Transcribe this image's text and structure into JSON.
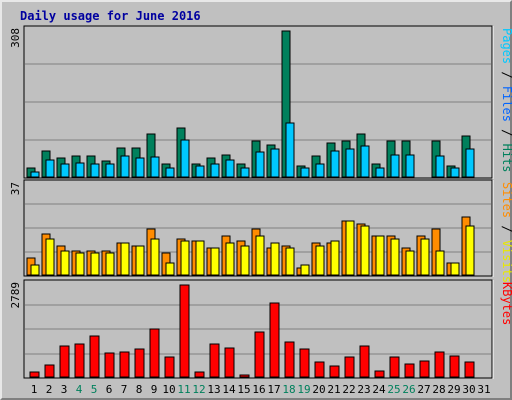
{
  "chart_data": {
    "type": "bar",
    "title": "Daily usage for June 2016",
    "categories": [
      "1",
      "2",
      "3",
      "4",
      "5",
      "6",
      "7",
      "8",
      "9",
      "10",
      "11",
      "12",
      "13",
      "14",
      "15",
      "16",
      "17",
      "18",
      "19",
      "20",
      "21",
      "22",
      "23",
      "24",
      "25",
      "26",
      "27",
      "28",
      "29",
      "30",
      "31"
    ],
    "weekend_days": [
      "4",
      "5",
      "11",
      "12",
      "18",
      "19",
      "25",
      "26"
    ],
    "panels": [
      {
        "id": "top",
        "max_label": "308",
        "ymax": 308,
        "series": [
          {
            "name": "Pages",
            "color": "#00805c",
            "values": [
              19,
              54,
              40,
              45,
              45,
              34,
              62,
              62,
              90,
              28,
              104,
              28,
              40,
              47,
              28,
              76,
              68,
              308,
              23,
              45,
              72,
              76,
              90,
              28,
              76,
              76,
              0,
              76,
              23,
              87,
              null
            ]
          },
          {
            "name": "Files",
            "color": "#00c8ff",
            "values": [
              11,
              36,
              28,
              30,
              28,
              28,
              45,
              41,
              43,
              19,
              78,
              23,
              28,
              36,
              19,
              52,
              59,
              113,
              19,
              28,
              54,
              59,
              66,
              19,
              47,
              47,
              0,
              45,
              19,
              59,
              null
            ]
          },
          {
            "name": "Hits",
            "color": "#00c8ff",
            "values": [
              0,
              0,
              0,
              0,
              0,
              0,
              0,
              0,
              0,
              0,
              0,
              0,
              0,
              0,
              0,
              0,
              0,
              0,
              0,
              0,
              0,
              0,
              0,
              0,
              0,
              0,
              0,
              0,
              0,
              0,
              null
            ]
          }
        ]
      },
      {
        "id": "middle",
        "max_label": "37",
        "ymax": 37,
        "series": [
          {
            "name": "Sites",
            "color": "#ff8c00",
            "values": [
              7,
              17,
              12,
              10,
              10,
              10,
              13,
              12,
              19,
              9,
              15,
              14,
              11,
              16,
              14,
              19,
              11,
              12,
              3,
              13,
              13,
              22,
              21,
              16,
              16,
              11,
              16,
              19,
              5,
              24,
              null
            ]
          },
          {
            "name": "Visits",
            "color": "#ffff00",
            "values": [
              4,
              15,
              10,
              9,
              9,
              9,
              13,
              12,
              15,
              5,
              14,
              14,
              11,
              13,
              12,
              16,
              13,
              11,
              4,
              12,
              14,
              22,
              20,
              16,
              15,
              10,
              15,
              10,
              5,
              20,
              null
            ]
          }
        ]
      },
      {
        "id": "bottom",
        "max_label": "2789",
        "ymax": 2789,
        "series": [
          {
            "name": "KBytes",
            "color": "#ff0000",
            "values": [
              150,
              360,
              950,
              1000,
              1250,
              720,
              750,
              850,
              1450,
              620,
              2789,
              150,
              990,
              880,
              50,
              1350,
              2250,
              1050,
              850,
              450,
              330,
              620,
              950,
              180,
              610,
              400,
              480,
              760,
              640,
              440,
              null
            ]
          }
        ]
      }
    ],
    "right_labels": {
      "top": [
        {
          "text": "Pages",
          "color": "#00c8ff"
        },
        {
          "text": " / ",
          "color": "#000000"
        },
        {
          "text": "Files",
          "color": "#0064ff"
        },
        {
          "text": " / ",
          "color": "#000000"
        },
        {
          "text": "Hits",
          "color": "#00805c"
        }
      ],
      "middle": [
        {
          "text": "Sites",
          "color": "#ff8c00"
        },
        {
          "text": " / ",
          "color": "#000000"
        },
        {
          "text": "Visits",
          "color": "#e8e800"
        }
      ],
      "bottom": [
        {
          "text": "KBytes",
          "color": "#ff0000"
        }
      ]
    }
  }
}
